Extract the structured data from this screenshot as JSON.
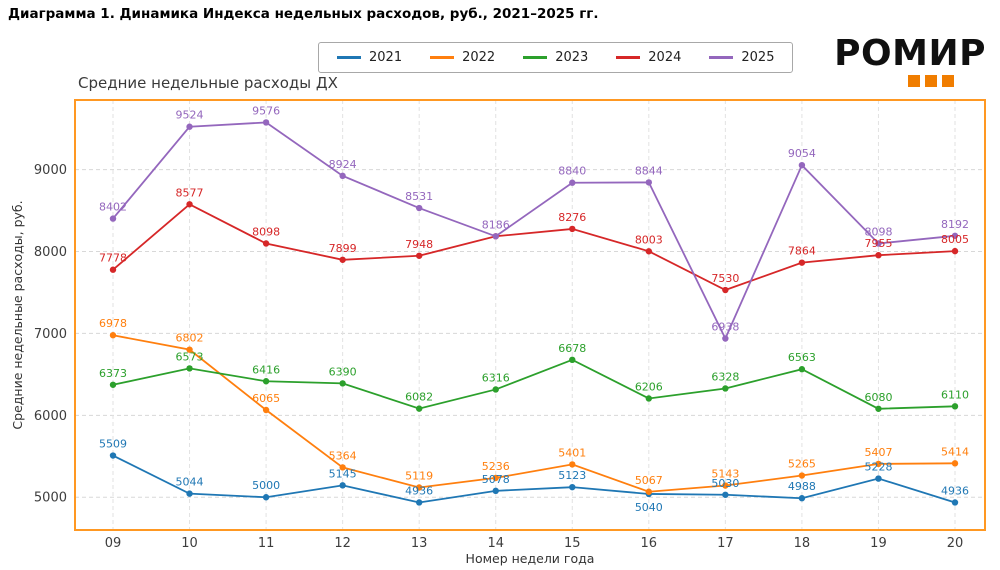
{
  "page_title": "Диаграмма 1. Динамика Индекса недельных расходов, руб., 2021–2025 гг.",
  "logo": {
    "text": "РОМИР",
    "accent_color": "#f07d00"
  },
  "chart_data": {
    "type": "line",
    "title": "Средние недельные расходы ДХ",
    "xlabel": "Номер недели года",
    "ylabel": "Средние недельные расходы, руб.",
    "categories": [
      "09",
      "10",
      "11",
      "12",
      "13",
      "14",
      "15",
      "16",
      "17",
      "18",
      "19",
      "20"
    ],
    "yticks": [
      5000,
      6000,
      7000,
      8000,
      9000
    ],
    "ylim": [
      4600,
      9850
    ],
    "grid": true,
    "legend_position": "top-center",
    "frame_color": "#ff9822",
    "series": [
      {
        "name": "2021",
        "color": "#1f77b4",
        "values": [
          5509,
          5044,
          5000,
          5145,
          4936,
          5078,
          5123,
          5040,
          5030,
          4988,
          5228,
          4936
        ]
      },
      {
        "name": "2022",
        "color": "#ff7f0e",
        "values": [
          6978,
          6802,
          6065,
          5364,
          5119,
          5236,
          5401,
          5067,
          5143,
          5265,
          5407,
          5414
        ]
      },
      {
        "name": "2023",
        "color": "#2ca02c",
        "values": [
          6373,
          6573,
          6416,
          6390,
          6082,
          6316,
          6678,
          6206,
          6328,
          6563,
          6080,
          6110
        ]
      },
      {
        "name": "2024",
        "color": "#d62728",
        "values": [
          7778,
          8577,
          8098,
          7899,
          7948,
          8186,
          8276,
          8003,
          7530,
          7864,
          7955,
          8005
        ]
      },
      {
        "name": "2025",
        "color": "#9467bd",
        "values": [
          8402,
          9524,
          9576,
          8924,
          8531,
          8186,
          8840,
          8844,
          6938,
          9054,
          8098,
          8192
        ]
      }
    ]
  }
}
